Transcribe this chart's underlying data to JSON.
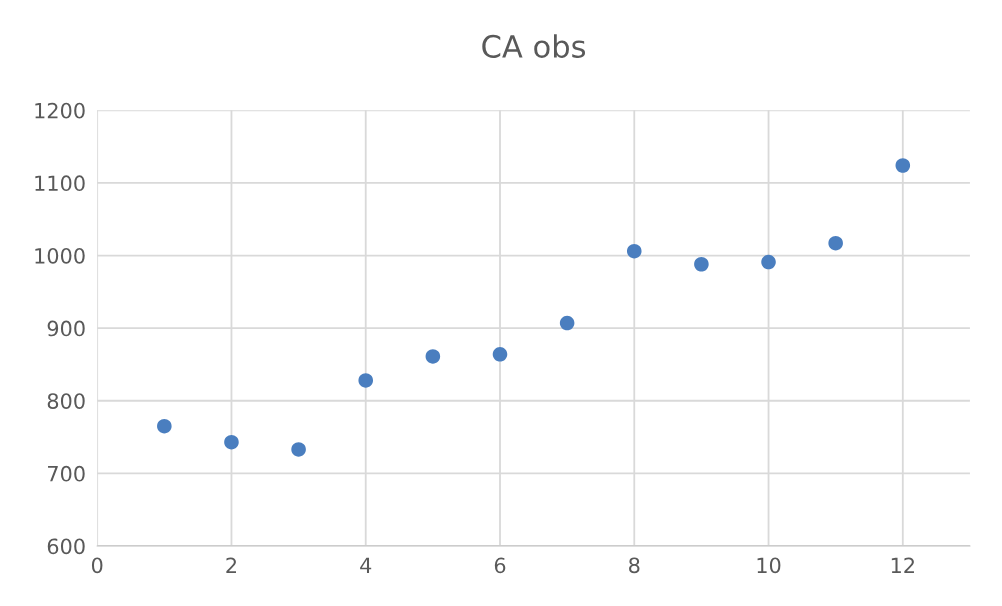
{
  "chart_data": {
    "type": "scatter",
    "title": "CA obs",
    "x": [
      1,
      2,
      3,
      4,
      5,
      6,
      7,
      8,
      9,
      10,
      11,
      12
    ],
    "values": [
      765,
      743,
      733,
      828,
      861,
      864,
      907,
      1006,
      988,
      991,
      1017,
      1124
    ],
    "color": "#4a7ebf",
    "marker": "circle",
    "xlim": [
      0,
      13
    ],
    "xticks": [
      0,
      2,
      4,
      6,
      8,
      10,
      12
    ],
    "ylim": [
      600,
      1200
    ],
    "yticks": [
      600,
      700,
      800,
      900,
      1000,
      1100,
      1200
    ],
    "grid": true
  }
}
